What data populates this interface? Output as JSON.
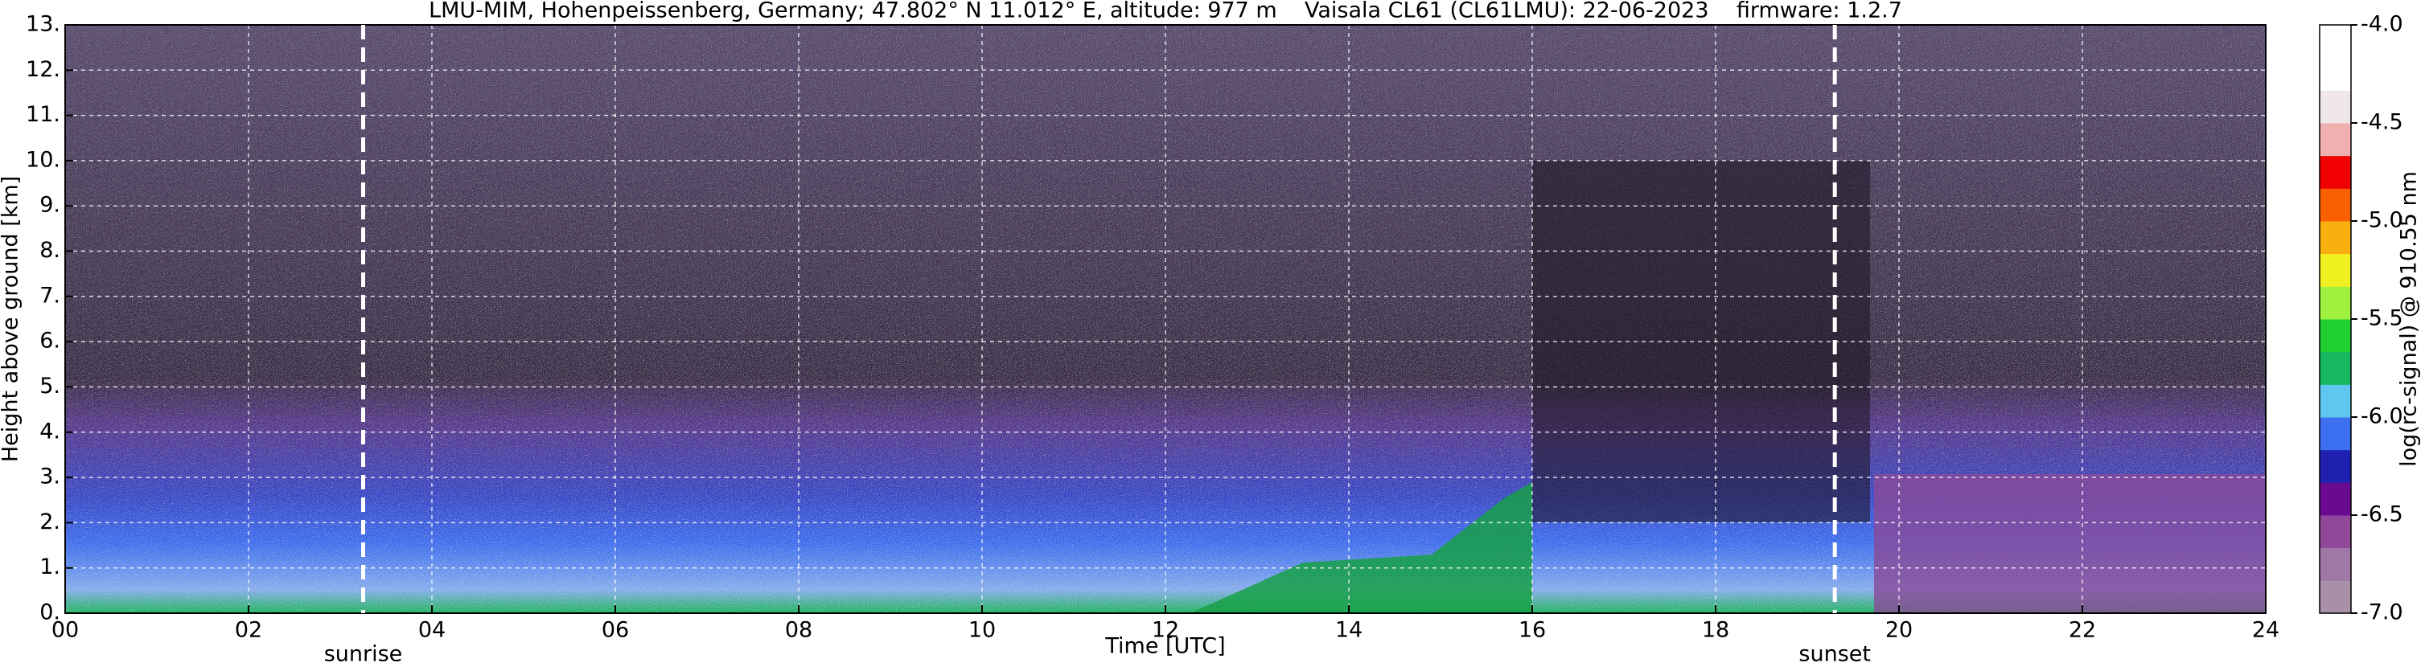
{
  "chart_data": {
    "type": "heatmap",
    "title": "LMU-MIM, Hohenpeissenberg, Germany; 47.802° N 11.012° E, altitude: 977 m    Vaisala CL61 (CL61LMU): 22-06-2023    firmware: 1.2.7",
    "xlabel": "Time [UTC]",
    "ylabel": "Height above ground [km]",
    "colorbar_label": "log(rc-signal) @ 910.55 nm",
    "xlim": [
      0,
      24
    ],
    "xticks": [
      {
        "value": 0,
        "label": "00"
      },
      {
        "value": 2,
        "label": "02"
      },
      {
        "value": 4,
        "label": "04"
      },
      {
        "value": 6,
        "label": "06"
      },
      {
        "value": 8,
        "label": "08"
      },
      10,
      12,
      14,
      16,
      18,
      20,
      22,
      24
    ],
    "ylim": [
      0,
      13
    ],
    "yticks": [
      {
        "value": 0,
        "label": "0."
      },
      {
        "value": 1,
        "label": "1."
      },
      {
        "value": 2,
        "label": "2."
      },
      {
        "value": 3,
        "label": "3."
      },
      {
        "value": 4,
        "label": "4."
      },
      {
        "value": 5,
        "label": "5."
      },
      {
        "value": 6,
        "label": "6."
      },
      {
        "value": 7,
        "label": "7."
      },
      {
        "value": 8,
        "label": "8."
      },
      {
        "value": 9,
        "label": "9."
      },
      {
        "value": 10,
        "label": "10."
      },
      {
        "value": 11,
        "label": "11."
      },
      {
        "value": 12,
        "label": "12."
      },
      {
        "value": 13,
        "label": "13."
      }
    ],
    "clim": [
      -7,
      -4
    ],
    "cticks": [
      {
        "value": -4,
        "label": "-4.0"
      },
      -4.5,
      {
        "value": -5,
        "label": "-5.0"
      },
      -5.5,
      {
        "value": -6,
        "label": "-6.0"
      },
      -6.5,
      {
        "value": -7,
        "label": "-7.0"
      }
    ],
    "colormap": [
      "#a890a8",
      "#a078a8",
      "#904898",
      "#6a0a90",
      "#2020b0",
      "#3c70f0",
      "#60c8f0",
      "#18b860",
      "#20d030",
      "#a0f040",
      "#f0f020",
      "#f8b010",
      "#f86000",
      "#f00000",
      "#f0b0b0",
      "#f0e8e8",
      "#ffffff",
      "#ffffff"
    ],
    "annotations": [
      {
        "text": "sunrise",
        "x": 3.25
      },
      {
        "text": "sunset",
        "x": 19.3
      }
    ],
    "grid": true
  }
}
